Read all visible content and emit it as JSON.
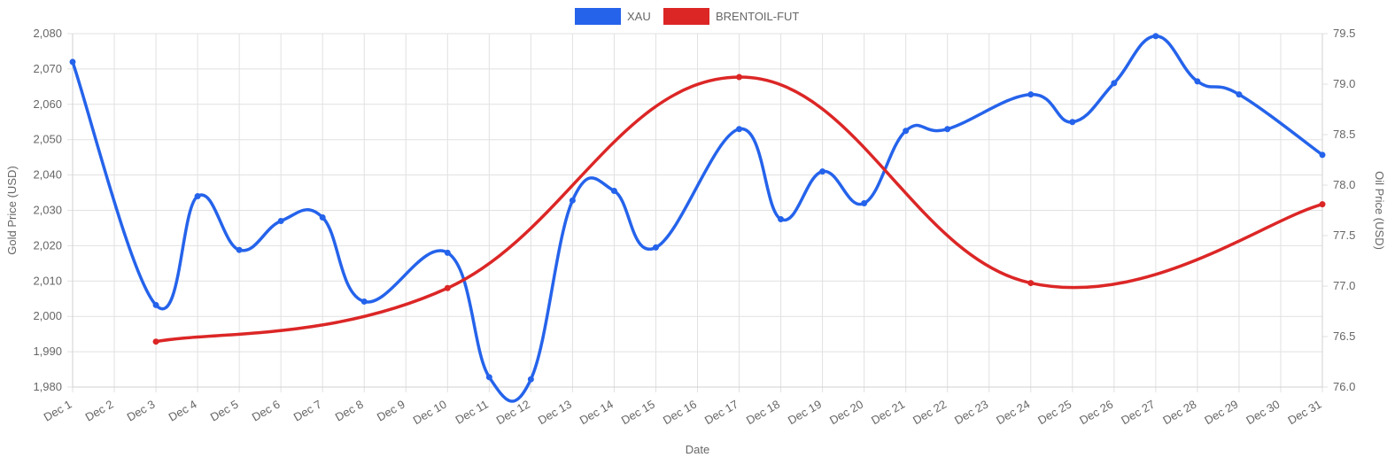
{
  "chart_data": {
    "type": "line",
    "title": "",
    "categories": [
      "Dec 1",
      "Dec 2",
      "Dec 3",
      "Dec 4",
      "Dec 5",
      "Dec 6",
      "Dec 7",
      "Dec 8",
      "Dec 9",
      "Dec 10",
      "Dec 11",
      "Dec 12",
      "Dec 13",
      "Dec 14",
      "Dec 15",
      "Dec 16",
      "Dec 17",
      "Dec 18",
      "Dec 19",
      "Dec 20",
      "Dec 21",
      "Dec 22",
      "Dec 23",
      "Dec 24",
      "Dec 25",
      "Dec 26",
      "Dec 27",
      "Dec 28",
      "Dec 29",
      "Dec 30",
      "Dec 31"
    ],
    "xlabel": "Date",
    "ylabel_left": "Gold Price (USD)",
    "ylabel_right": "Oil Price (USD)",
    "ylim_left": [
      1980,
      2080
    ],
    "ylim_right": [
      76.0,
      79.5
    ],
    "yticks_left": [
      "1,980",
      "1,990",
      "2,000",
      "2,010",
      "2,020",
      "2,030",
      "2,040",
      "2,050",
      "2,060",
      "2,070",
      "2,080"
    ],
    "yticks_left_values": [
      1980,
      1990,
      2000,
      2010,
      2020,
      2030,
      2040,
      2050,
      2060,
      2070,
      2080
    ],
    "yticks_right": [
      "76.0",
      "76.5",
      "77.0",
      "77.5",
      "78.0",
      "78.5",
      "79.0",
      "79.5"
    ],
    "yticks_right_values": [
      76.0,
      76.5,
      77.0,
      77.5,
      78.0,
      78.5,
      79.0,
      79.5
    ],
    "grid": true,
    "legend_position": "top-center",
    "series": [
      {
        "name": "XAU",
        "axis": "left",
        "color": "#2563eb",
        "points": [
          {
            "x": "Dec 1",
            "y": 2072
          },
          {
            "x": "Dec 3",
            "y": 2003.2
          },
          {
            "x": "Dec 4",
            "y": 2034
          },
          {
            "x": "Dec 5",
            "y": 2018.8
          },
          {
            "x": "Dec 6",
            "y": 2027
          },
          {
            "x": "Dec 7",
            "y": 2028
          },
          {
            "x": "Dec 8",
            "y": 2004.2
          },
          {
            "x": "Dec 10",
            "y": 2018
          },
          {
            "x": "Dec 11",
            "y": 1982.8
          },
          {
            "x": "Dec 12",
            "y": 1982.2
          },
          {
            "x": "Dec 13",
            "y": 2032.8
          },
          {
            "x": "Dec 14",
            "y": 2035.5
          },
          {
            "x": "Dec 15",
            "y": 2019.5
          },
          {
            "x": "Dec 17",
            "y": 2053
          },
          {
            "x": "Dec 18",
            "y": 2027.5
          },
          {
            "x": "Dec 19",
            "y": 2041
          },
          {
            "x": "Dec 20",
            "y": 2032
          },
          {
            "x": "Dec 21",
            "y": 2052.5
          },
          {
            "x": "Dec 22",
            "y": 2053
          },
          {
            "x": "Dec 24",
            "y": 2062.8
          },
          {
            "x": "Dec 25",
            "y": 2055
          },
          {
            "x": "Dec 26",
            "y": 2066
          },
          {
            "x": "Dec 27",
            "y": 2079.3
          },
          {
            "x": "Dec 28",
            "y": 2066.5
          },
          {
            "x": "Dec 29",
            "y": 2062.8
          },
          {
            "x": "Dec 31",
            "y": 2045.7
          }
        ]
      },
      {
        "name": "BRENTOIL-FUT",
        "axis": "right",
        "color": "#dc2626",
        "points": [
          {
            "x": "Dec 3",
            "y": 76.45
          },
          {
            "x": "Dec 10",
            "y": 76.98
          },
          {
            "x": "Dec 17",
            "y": 79.07
          },
          {
            "x": "Dec 24",
            "y": 77.03
          },
          {
            "x": "Dec 31",
            "y": 77.81
          }
        ]
      }
    ]
  }
}
